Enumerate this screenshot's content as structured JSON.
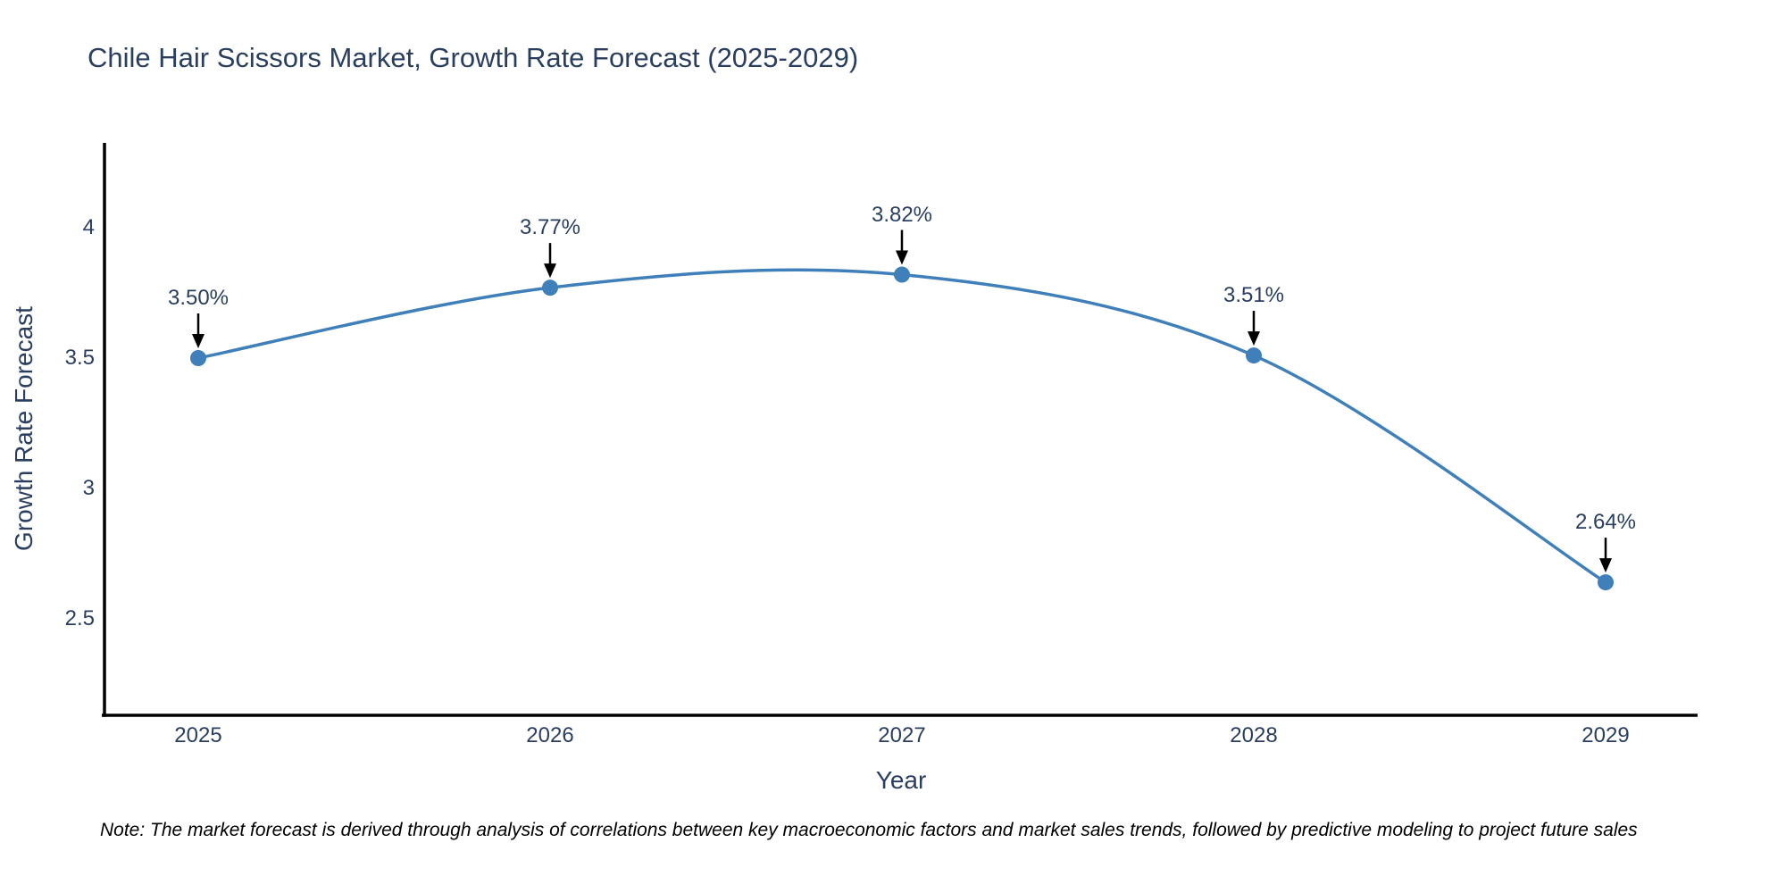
{
  "title": "Chile Hair Scissors Market, Growth Rate Forecast (2025-2029)",
  "note": "Note: The market forecast is derived through analysis of correlations between key macroeconomic factors and market sales trends, followed by predictive modeling to project future sales",
  "colors": {
    "line": "#3f7fba",
    "marker": "#3f7fba",
    "text": "#2a3f5f",
    "axis": "#000000",
    "arrow": "#000000",
    "note_text": "#000000",
    "background": "#ffffff"
  },
  "chart_data": {
    "type": "line",
    "title": "Chile Hair Scissors Market, Growth Rate Forecast (2025-2029)",
    "xlabel": "Year",
    "ylabel": "Growth Rate Forecast",
    "x": [
      2025,
      2026,
      2027,
      2028,
      2029
    ],
    "y": [
      3.5,
      3.77,
      3.82,
      3.51,
      2.64
    ],
    "point_labels": [
      "3.50%",
      "3.77%",
      "3.82%",
      "3.51%",
      "2.64%"
    ],
    "xtick_labels": [
      "2025",
      "2026",
      "2027",
      "2028",
      "2029"
    ],
    "yticks": [
      4,
      3.5,
      3,
      2.5
    ],
    "ytick_labels": [
      "4",
      "3.5",
      "3",
      "2.5"
    ],
    "ylim": [
      2.13,
      4.33
    ],
    "line_shape": "spline",
    "markers_on": true,
    "grid": false,
    "legend_position": "none",
    "annotation_arrows": true
  }
}
